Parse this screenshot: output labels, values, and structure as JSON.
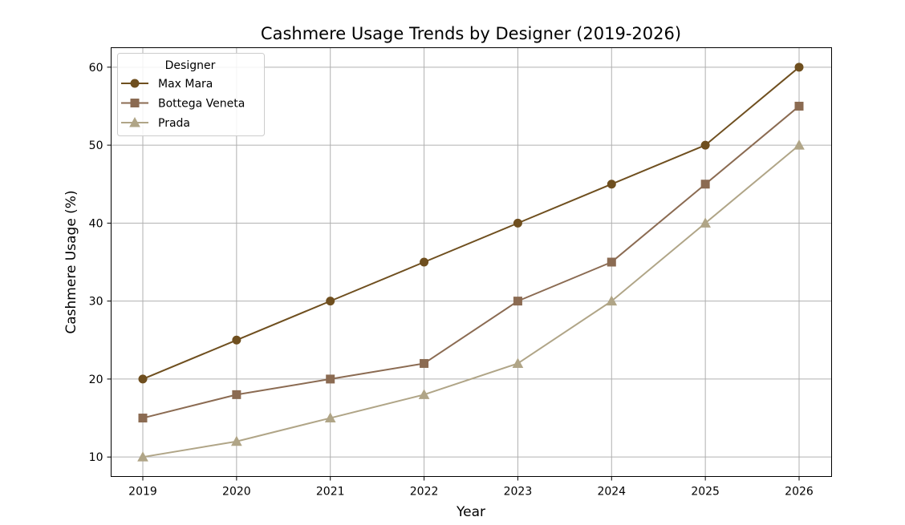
{
  "chart_data": {
    "type": "line",
    "title": "Cashmere Usage Trends by Designer (2019-2026)",
    "xlabel": "Year",
    "ylabel": "Cashmere Usage (%)",
    "x": [
      2019,
      2020,
      2021,
      2022,
      2023,
      2024,
      2025,
      2026
    ],
    "xticks": [
      "2019",
      "2020",
      "2021",
      "2022",
      "2023",
      "2024",
      "2025",
      "2026"
    ],
    "yticks": [
      10,
      20,
      30,
      40,
      50,
      60
    ],
    "ylim": [
      7.5,
      62.5
    ],
    "grid": true,
    "legend": {
      "title": "Designer",
      "placement": "top-left"
    },
    "series": [
      {
        "name": "Max Mara",
        "color": "#6f4f1f",
        "marker": "circle",
        "values": [
          20,
          25,
          30,
          35,
          40,
          45,
          50,
          60
        ]
      },
      {
        "name": "Bottega Veneta",
        "color": "#8b6b52",
        "marker": "square",
        "values": [
          15,
          18,
          20,
          22,
          30,
          35,
          45,
          55
        ]
      },
      {
        "name": "Prada",
        "color": "#b0a587",
        "marker": "triangle",
        "values": [
          10,
          12,
          15,
          18,
          22,
          30,
          40,
          50
        ]
      }
    ]
  }
}
